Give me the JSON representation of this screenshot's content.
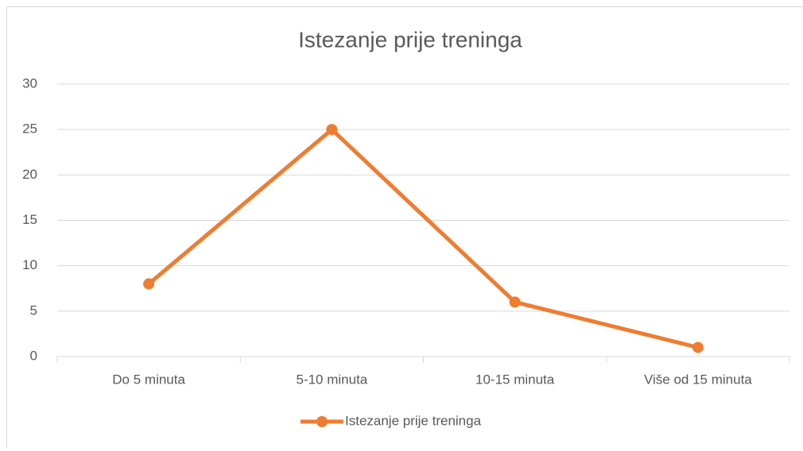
{
  "chart_data": {
    "type": "line",
    "title": "Istezanje prije treninga",
    "categories": [
      "Do 5 minuta",
      "5-10 minuta",
      "10-15 minuta",
      "Više od 15 minuta"
    ],
    "series": [
      {
        "name": "Istezanje prije treninga",
        "color": "#ed7d31",
        "values": [
          8,
          25,
          6,
          1
        ]
      }
    ],
    "ylim": [
      0,
      30
    ],
    "yticks": [
      0,
      5,
      10,
      15,
      20,
      25,
      30
    ],
    "grid": true,
    "legend": "bottom"
  }
}
